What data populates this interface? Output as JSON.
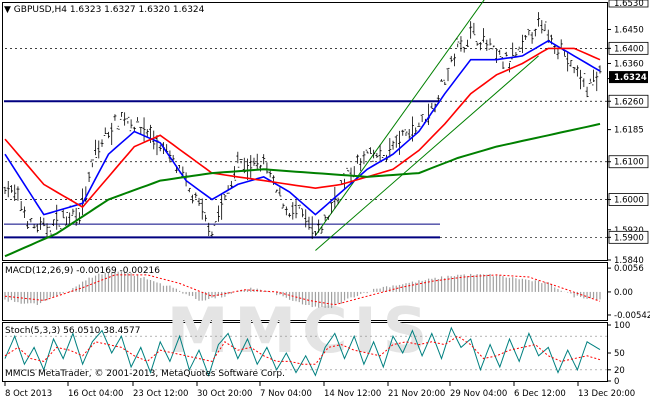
{
  "header": {
    "symbol_line": "GBPUSD,H4  1.6323 1.6327 1.6320 1.6324",
    "macd_label": "MACD(12,26,9) -0.00169 -0.00216",
    "stoch_label": "Stoch(5,3,3) 56.0510 38.4577",
    "copyright": "MMCIS MetaTrader, © 2001-2013, MetaQuotes Software Corp.",
    "watermark": "MMCIS"
  },
  "colors": {
    "price_bars": "#000000",
    "ma_fast": "#0000ff",
    "ma_medium": "#ff0000",
    "ma_slow": "#008000",
    "level_line": "#000080",
    "channel": "#008000",
    "macd_hist": "#a0a0a0",
    "macd_signal": "#ff0000",
    "stoch_main": "#008080",
    "stoch_signal": "#ff0000"
  },
  "chart_data": [
    {
      "type": "line",
      "panel": "price",
      "title": "GBPUSD,H4",
      "ylim": [
        1.584,
        1.652
      ],
      "y_ticks": [
        "1.6450",
        "1.6400",
        "1.6360",
        "1.6320",
        "1.6260",
        "1.6185",
        "1.6100",
        "1.6000",
        "1.5920",
        "1.5900",
        "1.5840"
      ],
      "highlighted_levels": [
        {
          "label": "1.6400",
          "value": 1.64
        },
        {
          "label": "1.6260",
          "value": 1.626
        },
        {
          "label": "1.6100",
          "value": 1.61
        },
        {
          "label": "1.6000",
          "value": 1.6
        },
        {
          "label": "1.5900",
          "value": 1.59
        }
      ],
      "current_price": {
        "label": "1.6324",
        "value": 1.6324
      },
      "top_tick": "1.6530",
      "x_ticks": [
        "8 Oct 2013",
        "16 Oct 04:00",
        "23 Oct 12:00",
        "30 Oct 20:00",
        "7 Nov 04:00",
        "14 Nov 12:00",
        "21 Nov 20:00",
        "29 Nov 04:00",
        "6 Dec 12:00",
        "13 Dec 20:00"
      ],
      "price_anchors": [
        [
          0,
          1.604
        ],
        [
          4,
          1.6
        ],
        [
          8,
          1.593
        ],
        [
          12,
          1.592
        ],
        [
          16,
          1.594
        ],
        [
          20,
          1.596
        ],
        [
          24,
          1.598
        ],
        [
          28,
          1.612
        ],
        [
          32,
          1.618
        ],
        [
          36,
          1.622
        ],
        [
          40,
          1.62
        ],
        [
          44,
          1.618
        ],
        [
          48,
          1.614
        ],
        [
          52,
          1.61
        ],
        [
          56,
          1.604
        ],
        [
          60,
          1.598
        ],
        [
          64,
          1.592
        ],
        [
          68,
          1.6
        ],
        [
          72,
          1.61
        ],
        [
          76,
          1.608
        ],
        [
          80,
          1.61
        ],
        [
          84,
          1.602
        ],
        [
          88,
          1.597
        ],
        [
          92,
          1.596
        ],
        [
          96,
          1.59
        ],
        [
          100,
          1.596
        ],
        [
          104,
          1.604
        ],
        [
          108,
          1.608
        ],
        [
          112,
          1.612
        ],
        [
          116,
          1.611
        ],
        [
          120,
          1.614
        ],
        [
          124,
          1.617
        ],
        [
          128,
          1.62
        ],
        [
          132,
          1.624
        ],
        [
          136,
          1.632
        ],
        [
          140,
          1.64
        ],
        [
          144,
          1.644
        ],
        [
          148,
          1.642
        ],
        [
          152,
          1.638
        ],
        [
          156,
          1.636
        ],
        [
          160,
          1.64
        ],
        [
          164,
          1.646
        ],
        [
          168,
          1.644
        ],
        [
          172,
          1.64
        ],
        [
          176,
          1.634
        ],
        [
          180,
          1.63
        ],
        [
          184,
          1.633
        ]
      ],
      "series": [
        {
          "name": "ma_fast",
          "anchors": [
            [
              0,
              1.612
            ],
            [
              12,
              1.596
            ],
            [
              24,
              1.599
            ],
            [
              32,
              1.612
            ],
            [
              40,
              1.618
            ],
            [
              48,
              1.615
            ],
            [
              56,
              1.605
            ],
            [
              64,
              1.6
            ],
            [
              72,
              1.604
            ],
            [
              80,
              1.606
            ],
            [
              88,
              1.602
            ],
            [
              96,
              1.596
            ],
            [
              104,
              1.602
            ],
            [
              112,
              1.608
            ],
            [
              120,
              1.612
            ],
            [
              128,
              1.618
            ],
            [
              136,
              1.628
            ],
            [
              144,
              1.637
            ],
            [
              152,
              1.637
            ],
            [
              160,
              1.638
            ],
            [
              168,
              1.642
            ],
            [
              176,
              1.638
            ],
            [
              184,
              1.634
            ]
          ]
        },
        {
          "name": "ma_medium",
          "anchors": [
            [
              0,
              1.616
            ],
            [
              12,
              1.604
            ],
            [
              24,
              1.598
            ],
            [
              32,
              1.606
            ],
            [
              40,
              1.614
            ],
            [
              48,
              1.617
            ],
            [
              56,
              1.612
            ],
            [
              64,
              1.607
            ],
            [
              72,
              1.606
            ],
            [
              80,
              1.605
            ],
            [
              88,
              1.604
            ],
            [
              96,
              1.603
            ],
            [
              104,
              1.604
            ],
            [
              112,
              1.606
            ],
            [
              120,
              1.608
            ],
            [
              128,
              1.613
            ],
            [
              136,
              1.62
            ],
            [
              144,
              1.628
            ],
            [
              152,
              1.633
            ],
            [
              160,
              1.636
            ],
            [
              168,
              1.64
            ],
            [
              176,
              1.64
            ],
            [
              184,
              1.637
            ]
          ]
        },
        {
          "name": "ma_slow",
          "anchors": [
            [
              0,
              1.585
            ],
            [
              16,
              1.591
            ],
            [
              32,
              1.6
            ],
            [
              48,
              1.605
            ],
            [
              64,
              1.607
            ],
            [
              80,
              1.608
            ],
            [
              96,
              1.607
            ],
            [
              112,
              1.606
            ],
            [
              128,
              1.607
            ],
            [
              140,
              1.611
            ],
            [
              152,
              1.614
            ],
            [
              168,
              1.617
            ],
            [
              184,
              1.62
            ]
          ]
        }
      ]
    },
    {
      "type": "bar",
      "panel": "macd",
      "title": "MACD(12,26,9)",
      "ylim": [
        -0.0066,
        0.0068
      ],
      "y_ticks": [
        "0.0056",
        "0.00",
        "-0.00542"
      ],
      "hist_anchors": [
        [
          0,
          -0.002
        ],
        [
          10,
          -0.003
        ],
        [
          20,
          0.0005
        ],
        [
          28,
          0.004
        ],
        [
          36,
          0.005
        ],
        [
          44,
          0.003
        ],
        [
          52,
          0.001
        ],
        [
          60,
          -0.002
        ],
        [
          68,
          -0.001
        ],
        [
          76,
          0.001
        ],
        [
          84,
          -0.0005
        ],
        [
          92,
          -0.003
        ],
        [
          100,
          -0.004
        ],
        [
          108,
          -0.001
        ],
        [
          116,
          0.001
        ],
        [
          124,
          0.002
        ],
        [
          132,
          0.003
        ],
        [
          140,
          0.004
        ],
        [
          150,
          0.004
        ],
        [
          160,
          0.003
        ],
        [
          168,
          0.002
        ],
        [
          176,
          -0.001
        ],
        [
          184,
          -0.0017
        ]
      ],
      "signal_anchors": [
        [
          0,
          -0.001
        ],
        [
          12,
          -0.002
        ],
        [
          24,
          0.001
        ],
        [
          34,
          0.004
        ],
        [
          44,
          0.004
        ],
        [
          54,
          0.002
        ],
        [
          64,
          -0.001
        ],
        [
          74,
          0.0005
        ],
        [
          84,
          0.0
        ],
        [
          94,
          -0.002
        ],
        [
          102,
          -0.003
        ],
        [
          112,
          -0.001
        ],
        [
          122,
          0.001
        ],
        [
          132,
          0.0025
        ],
        [
          142,
          0.0035
        ],
        [
          152,
          0.004
        ],
        [
          162,
          0.0035
        ],
        [
          172,
          0.001
        ],
        [
          184,
          -0.0022
        ]
      ]
    },
    {
      "type": "line",
      "panel": "stochastic",
      "title": "Stoch(5,3,3)",
      "ylim": [
        0,
        100
      ],
      "y_ticks": [
        "100",
        "50",
        "20",
        "0"
      ],
      "levels": [
        80,
        20
      ],
      "main_anchors": [
        [
          0,
          40
        ],
        [
          3,
          80
        ],
        [
          6,
          30
        ],
        [
          9,
          60
        ],
        [
          12,
          20
        ],
        [
          15,
          75
        ],
        [
          18,
          40
        ],
        [
          21,
          85
        ],
        [
          24,
          30
        ],
        [
          27,
          70
        ],
        [
          30,
          90
        ],
        [
          33,
          50
        ],
        [
          36,
          80
        ],
        [
          39,
          25
        ],
        [
          42,
          60
        ],
        [
          45,
          15
        ],
        [
          48,
          70
        ],
        [
          51,
          35
        ],
        [
          54,
          80
        ],
        [
          57,
          20
        ],
        [
          60,
          55
        ],
        [
          63,
          10
        ],
        [
          66,
          65
        ],
        [
          69,
          85
        ],
        [
          72,
          40
        ],
        [
          75,
          75
        ],
        [
          78,
          30
        ],
        [
          81,
          60
        ],
        [
          84,
          20
        ],
        [
          87,
          50
        ],
        [
          90,
          15
        ],
        [
          93,
          45
        ],
        [
          96,
          10
        ],
        [
          99,
          60
        ],
        [
          102,
          85
        ],
        [
          105,
          40
        ],
        [
          108,
          80
        ],
        [
          111,
          30
        ],
        [
          114,
          70
        ],
        [
          117,
          25
        ],
        [
          120,
          80
        ],
        [
          123,
          50
        ],
        [
          126,
          90
        ],
        [
          129,
          45
        ],
        [
          132,
          85
        ],
        [
          135,
          40
        ],
        [
          138,
          95
        ],
        [
          141,
          60
        ],
        [
          144,
          75
        ],
        [
          147,
          20
        ],
        [
          150,
          65
        ],
        [
          153,
          25
        ],
        [
          156,
          75
        ],
        [
          159,
          35
        ],
        [
          162,
          85
        ],
        [
          165,
          45
        ],
        [
          168,
          60
        ],
        [
          171,
          15
        ],
        [
          174,
          55
        ],
        [
          177,
          20
        ],
        [
          180,
          70
        ],
        [
          184,
          56
        ]
      ],
      "signal_anchors": [
        [
          0,
          45
        ],
        [
          4,
          60
        ],
        [
          8,
          40
        ],
        [
          12,
          35
        ],
        [
          16,
          60
        ],
        [
          20,
          55
        ],
        [
          24,
          45
        ],
        [
          28,
          70
        ],
        [
          32,
          65
        ],
        [
          36,
          60
        ],
        [
          40,
          45
        ],
        [
          44,
          35
        ],
        [
          48,
          55
        ],
        [
          52,
          50
        ],
        [
          56,
          45
        ],
        [
          60,
          40
        ],
        [
          64,
          35
        ],
        [
          68,
          70
        ],
        [
          72,
          55
        ],
        [
          76,
          60
        ],
        [
          80,
          45
        ],
        [
          84,
          35
        ],
        [
          88,
          35
        ],
        [
          92,
          30
        ],
        [
          96,
          30
        ],
        [
          100,
          60
        ],
        [
          104,
          65
        ],
        [
          108,
          55
        ],
        [
          112,
          50
        ],
        [
          116,
          45
        ],
        [
          120,
          65
        ],
        [
          124,
          70
        ],
        [
          128,
          65
        ],
        [
          132,
          70
        ],
        [
          136,
          65
        ],
        [
          140,
          80
        ],
        [
          144,
          65
        ],
        [
          148,
          40
        ],
        [
          152,
          45
        ],
        [
          156,
          55
        ],
        [
          160,
          60
        ],
        [
          164,
          65
        ],
        [
          168,
          45
        ],
        [
          172,
          35
        ],
        [
          176,
          40
        ],
        [
          180,
          45
        ],
        [
          184,
          38
        ]
      ]
    }
  ]
}
